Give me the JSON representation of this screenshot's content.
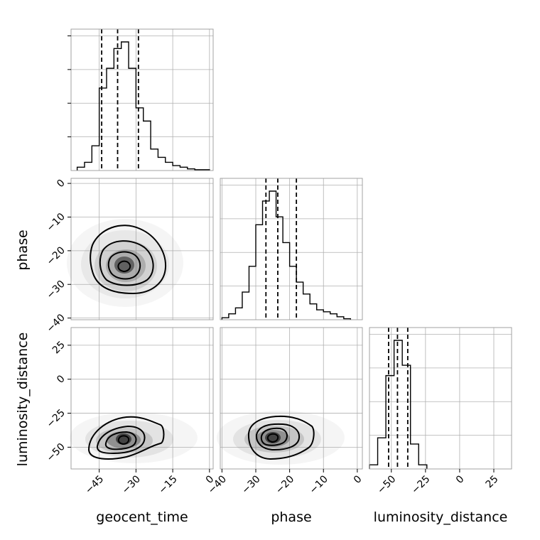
{
  "chart_data": {
    "type": "corner",
    "parameters": [
      "geocent_time",
      "phase",
      "luminosity_distance"
    ],
    "ranges": {
      "geocent_time": [
        -56.5,
        1.5
      ],
      "phase": [
        -40.5,
        1.5
      ],
      "luminosity_distance": [
        -66,
        38
      ]
    },
    "ticks": {
      "geocent_time": [
        -45,
        -30,
        -15,
        0
      ],
      "phase": [
        -40,
        -30,
        -20,
        -10,
        0
      ],
      "luminosity_distance": [
        -50,
        -25,
        0,
        25
      ]
    },
    "tick_labels": {
      "geocent_time": [
        "−45",
        "−30",
        "−15",
        "0"
      ],
      "phase": [
        "−40",
        "−30",
        "−20",
        "−10",
        "0"
      ],
      "luminosity_distance": [
        "−50",
        "−25",
        "0",
        "25"
      ]
    },
    "quantiles": {
      "geocent_time": [
        -44,
        -37.5,
        -29
      ],
      "phase": [
        -27,
        -23.5,
        -18
      ],
      "luminosity_distance": [
        -52,
        -45.5,
        -38
      ]
    },
    "histograms": {
      "geocent_time": {
        "edges": [
          -54,
          -51,
          -48,
          -45,
          -42,
          -39,
          -36,
          -33,
          -30,
          -27,
          -24,
          -21,
          -18,
          -15,
          -12,
          -9,
          -6,
          -3,
          0
        ],
        "counts": [
          0.02,
          0.05,
          0.15,
          0.5,
          0.62,
          0.74,
          0.78,
          0.62,
          0.38,
          0.3,
          0.13,
          0.08,
          0.05,
          0.03,
          0.02,
          0.01,
          0.005,
          0.005
        ]
      },
      "phase": {
        "edges": [
          -40,
          -38,
          -36,
          -34,
          -32,
          -30,
          -28,
          -26,
          -24,
          -22,
          -20,
          -18,
          -16,
          -14,
          -12,
          -10,
          -8,
          -6,
          -4,
          -2
        ],
        "counts": [
          0.01,
          0.03,
          0.06,
          0.14,
          0.27,
          0.48,
          0.6,
          0.65,
          0.52,
          0.39,
          0.27,
          0.19,
          0.13,
          0.08,
          0.05,
          0.04,
          0.03,
          0.015,
          0.005
        ]
      },
      "luminosity_distance": {
        "edges": [
          -66,
          -60,
          -54,
          -48,
          -42,
          -36,
          -30,
          -24
        ],
        "counts": [
          0.02,
          0.15,
          0.45,
          0.62,
          0.5,
          0.12,
          0.02
        ]
      }
    },
    "grid": true,
    "xlabels": [
      "geocent_time",
      "phase",
      "luminosity_distance"
    ],
    "ylabels": [
      "phase",
      "luminosity_distance"
    ]
  }
}
